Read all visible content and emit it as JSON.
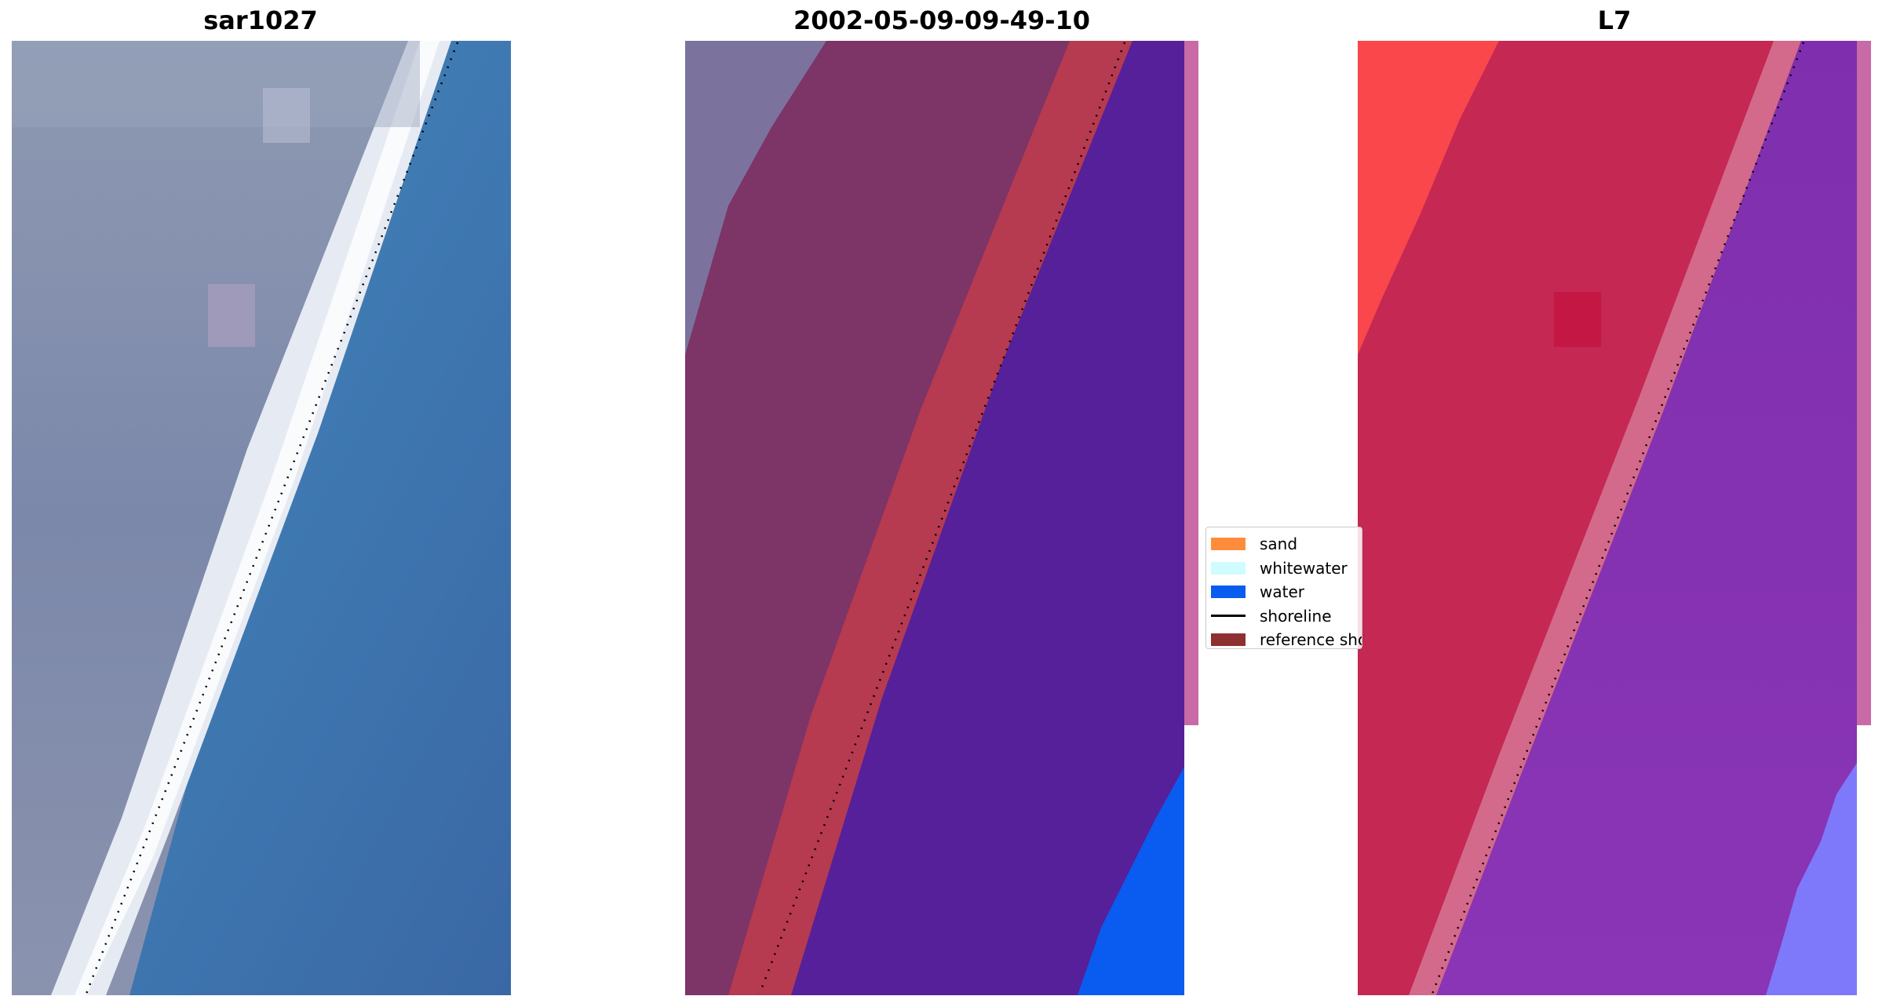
{
  "panels": [
    {
      "title": "sar1027"
    },
    {
      "title": "2002-05-09-09-49-10"
    },
    {
      "title": "L7"
    }
  ],
  "legend": {
    "items": [
      {
        "label": "sand",
        "color": "#ff8c3a",
        "kind": "patch"
      },
      {
        "label": "whitewater",
        "color": "#cffcff",
        "kind": "patch"
      },
      {
        "label": "water",
        "color": "#0a5cf0",
        "kind": "patch"
      },
      {
        "label": "shoreline",
        "color": "#000000",
        "kind": "line"
      },
      {
        "label": "reference shoreline",
        "color": "#8e2f32",
        "kind": "patch"
      }
    ]
  },
  "colors": {
    "land_rgb": "#7d88a8",
    "beach_whitewater_rgb": "#eef2f7",
    "sea_rgb": "#3f76ad",
    "land_classified": "#7d3467",
    "reference_band": "#b63a50",
    "water_classified": "#55209a",
    "water_blue": "#0a5cf0",
    "pink_strip": "#c76aa6",
    "land_index": "#c42853",
    "land_index_bright": "#ff4a4a",
    "water_index": "#7a27b0",
    "water_index_bright": "#7d7dff"
  }
}
